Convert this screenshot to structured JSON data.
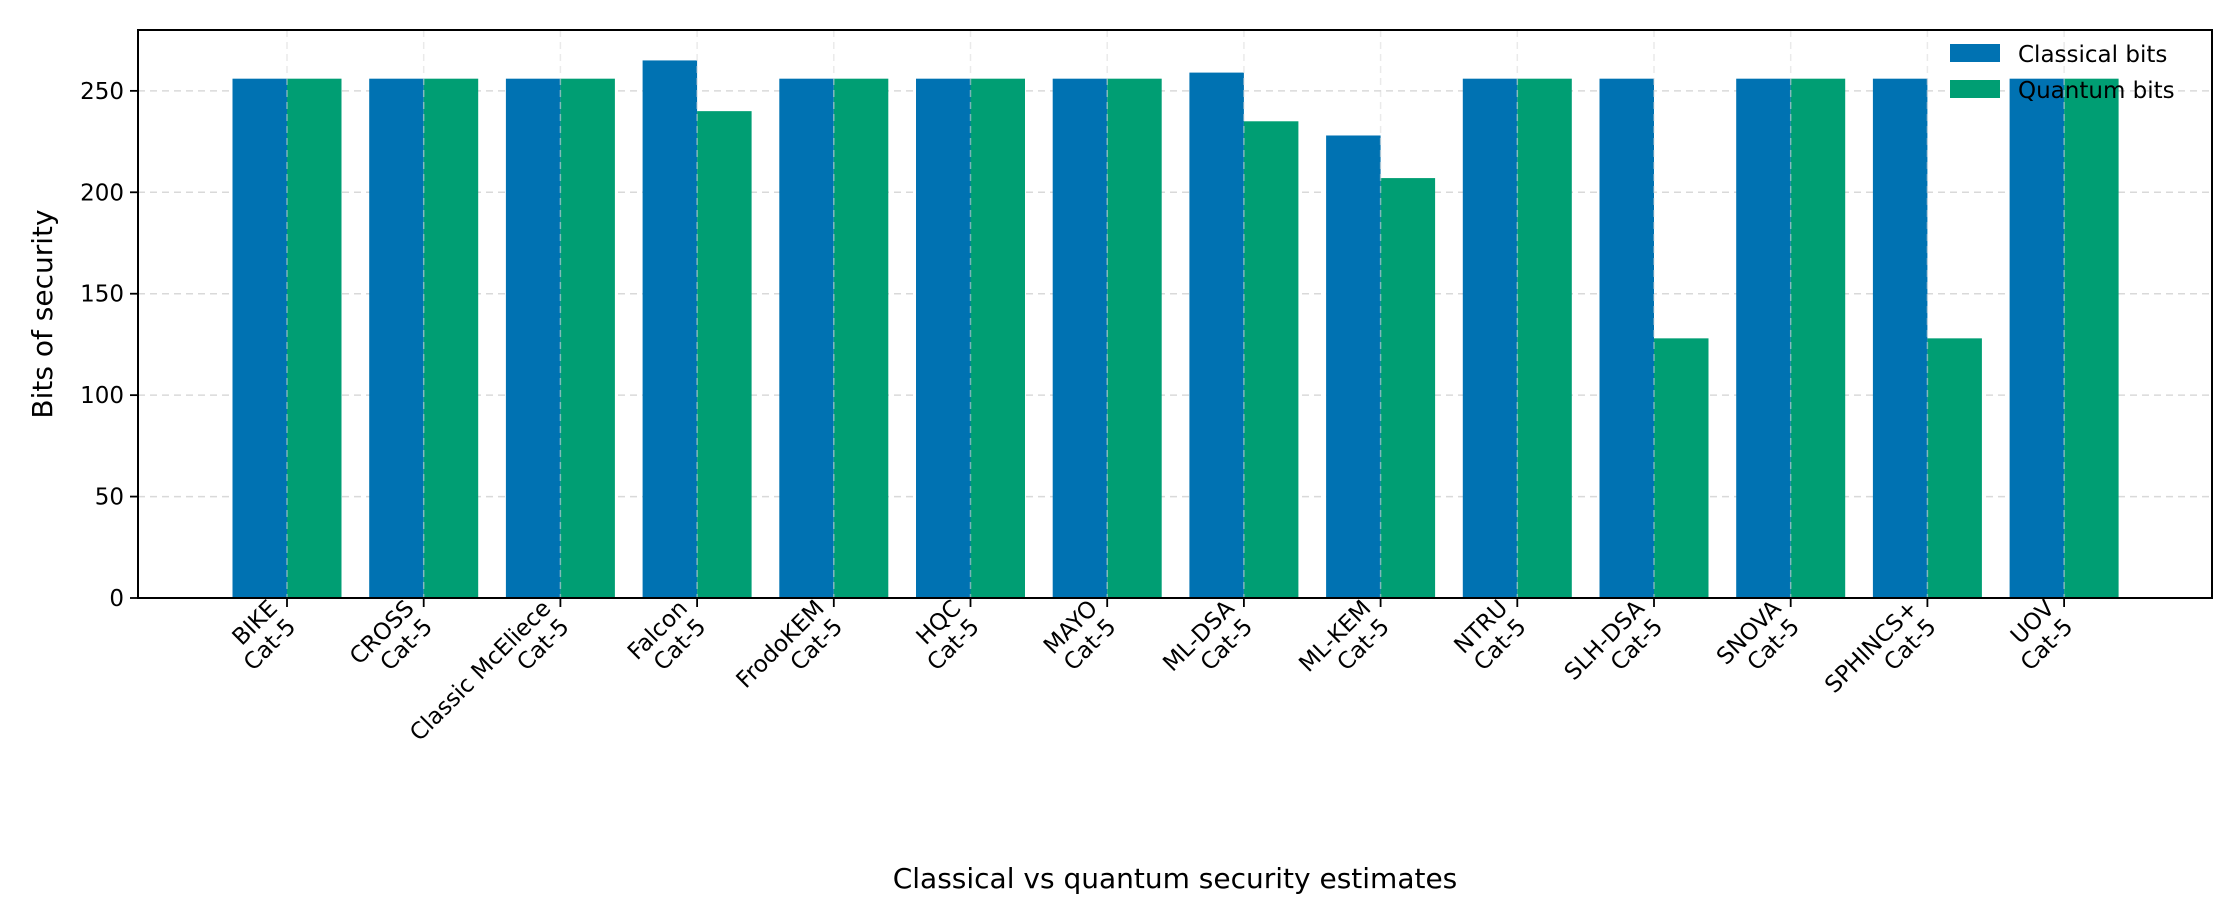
{
  "chart_data": {
    "type": "bar",
    "title": "",
    "xlabel": "Classical vs quantum security estimates",
    "ylabel": "Bits of security",
    "ylim": [
      0,
      280
    ],
    "yticks": [
      0,
      50,
      100,
      150,
      200,
      250
    ],
    "grid": true,
    "legend_position": "top-right",
    "categories": [
      "BIKE\nCat-5",
      "CROSS\nCat-5",
      "Classic McEliece\nCat-5",
      "Falcon\nCat-5",
      "FrodoKEM\nCat-5",
      "HQC\nCat-5",
      "MAYO\nCat-5",
      "ML-DSA\nCat-5",
      "ML-KEM\nCat-5",
      "NTRU\nCat-5",
      "SLH-DSA\nCat-5",
      "SNOVA\nCat-5",
      "SPHINCS+\nCat-5",
      "UOV\nCat-5"
    ],
    "series": [
      {
        "name": "Classical bits",
        "color": "#0072b2",
        "values": [
          256,
          256,
          256,
          265,
          256,
          256,
          256,
          259,
          228,
          256,
          256,
          256,
          256,
          256
        ]
      },
      {
        "name": "Quantum bits",
        "color": "#009e73",
        "values": [
          256,
          256,
          256,
          240,
          256,
          256,
          256,
          235,
          207,
          256,
          128,
          256,
          128,
          256
        ]
      }
    ]
  }
}
